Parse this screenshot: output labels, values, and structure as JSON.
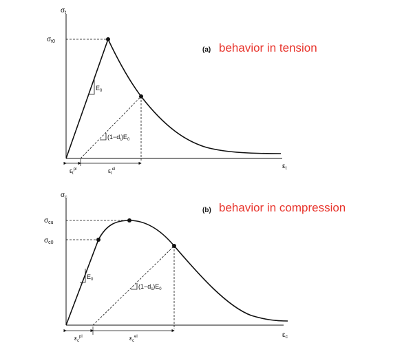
{
  "panel_a": {
    "tag": "(a)",
    "annotation": "behavior in tension",
    "y_axis": "σ",
    "y_axis_sub": "t",
    "peak_label": "σ",
    "peak_label_sub": "t0",
    "x_axis": "ε",
    "x_axis_sub": "t",
    "modulus_label": "E",
    "modulus_label_sub": "0",
    "damaged_modulus_label": "(1−d",
    "damaged_modulus_sub": "t",
    "damaged_modulus_tail": ")E",
    "damaged_modulus_tail_sub": "0",
    "plastic_strain": "ε",
    "plastic_strain_sub": "t",
    "plastic_strain_sup": "pl",
    "elastic_strain": "ε",
    "elastic_strain_sub": "t",
    "elastic_strain_sup": "el"
  },
  "panel_b": {
    "tag": "(b)",
    "annotation": "behavior in compression",
    "y_axis": "σ",
    "y_axis_sub": "c",
    "peak_label": "σ",
    "peak_label_sub": "cu",
    "initial_label": "σ",
    "initial_label_sub": "c0",
    "x_axis": "ε",
    "x_axis_sub": "c",
    "modulus_label": "E",
    "modulus_label_sub": "0",
    "damaged_modulus_label": "(1−d",
    "damaged_modulus_sub": "c",
    "damaged_modulus_tail": ")E",
    "damaged_modulus_tail_sub": "0",
    "plastic_strain": "ε",
    "plastic_strain_sub": "c",
    "plastic_strain_sup": "pl",
    "elastic_strain": "ε",
    "elastic_strain_sub": "c",
    "elastic_strain_sup": "el"
  },
  "colors": {
    "annotation": "#e8342c",
    "line": "#111111"
  }
}
